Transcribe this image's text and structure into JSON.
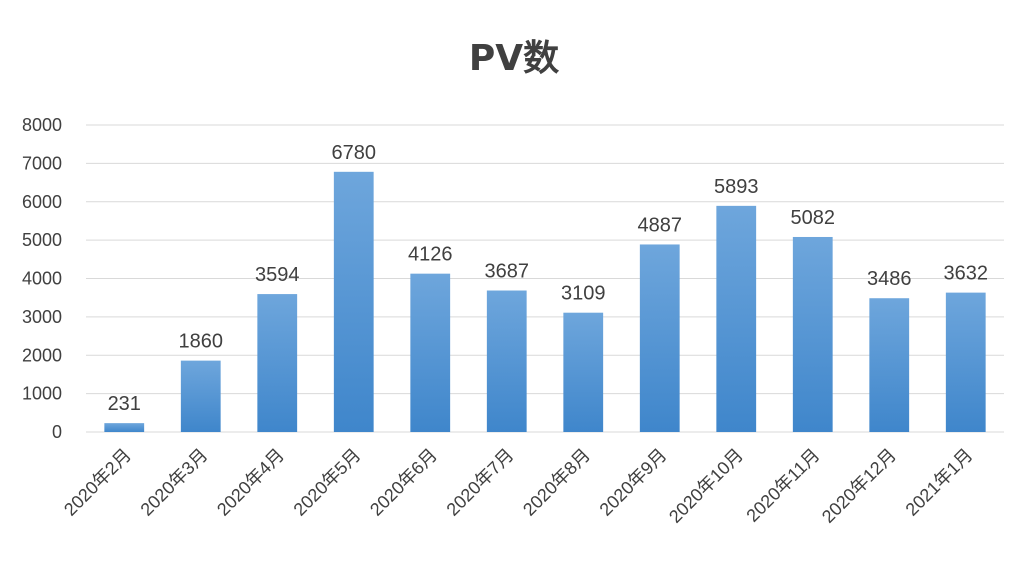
{
  "chart_data": {
    "type": "bar",
    "title": "PV数",
    "xlabel": "",
    "ylabel": "",
    "categories": [
      "2020年2月",
      "2020年3月",
      "2020年4月",
      "2020年5月",
      "2020年6月",
      "2020年7月",
      "2020年8月",
      "2020年9月",
      "2020年10月",
      "2020年11月",
      "2020年12月",
      "2021年1月"
    ],
    "values": [
      231,
      1860,
      3594,
      6780,
      4126,
      3687,
      3109,
      4887,
      5893,
      5082,
      3486,
      3632
    ],
    "ylim": [
      0,
      8000
    ],
    "yticks": [
      0,
      1000,
      2000,
      3000,
      4000,
      5000,
      6000,
      7000,
      8000
    ],
    "grid": true,
    "legend": "none",
    "colors": {
      "bar_top": "#6ea6dc",
      "bar_bottom": "#3f86cb",
      "grid": "#d9d9d9",
      "text": "#404040"
    }
  }
}
